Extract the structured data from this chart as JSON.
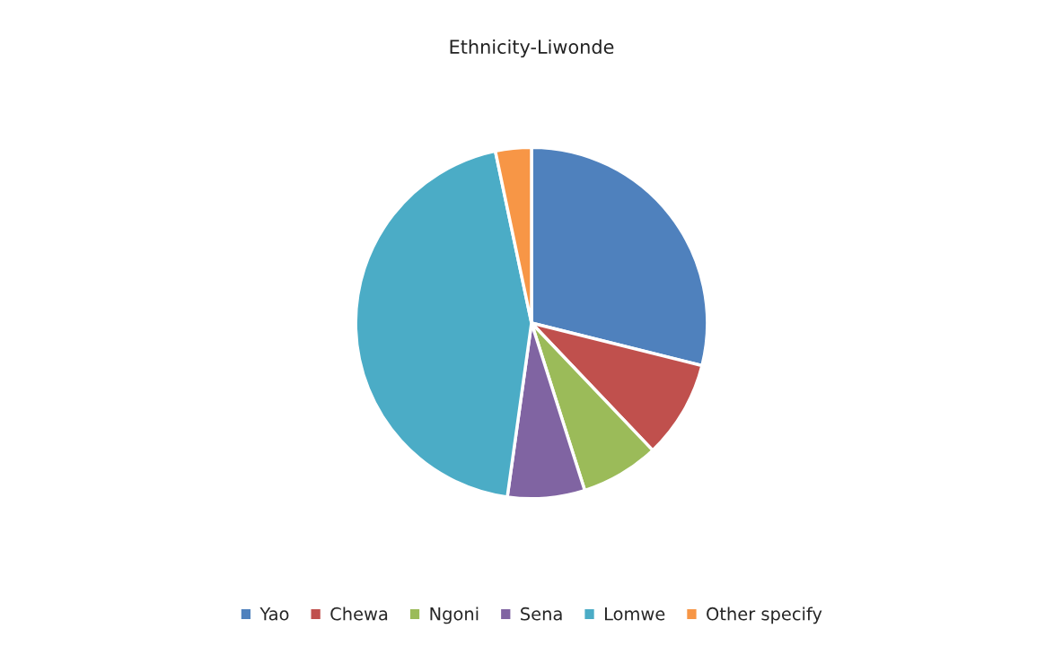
{
  "chart_data": {
    "type": "pie",
    "title": "Ethnicity-Liwonde",
    "categories": [
      "Yao",
      "Chewa",
      "Ngoni",
      "Sena",
      "Lomwe",
      "Other specify"
    ],
    "values": [
      28.9,
      9.0,
      7.2,
      7.1,
      44.5,
      3.3
    ],
    "colors": [
      "#4f81bd",
      "#c0504d",
      "#9bbb59",
      "#8064a2",
      "#4bacc6",
      "#f79646"
    ],
    "legend": "bottom"
  }
}
